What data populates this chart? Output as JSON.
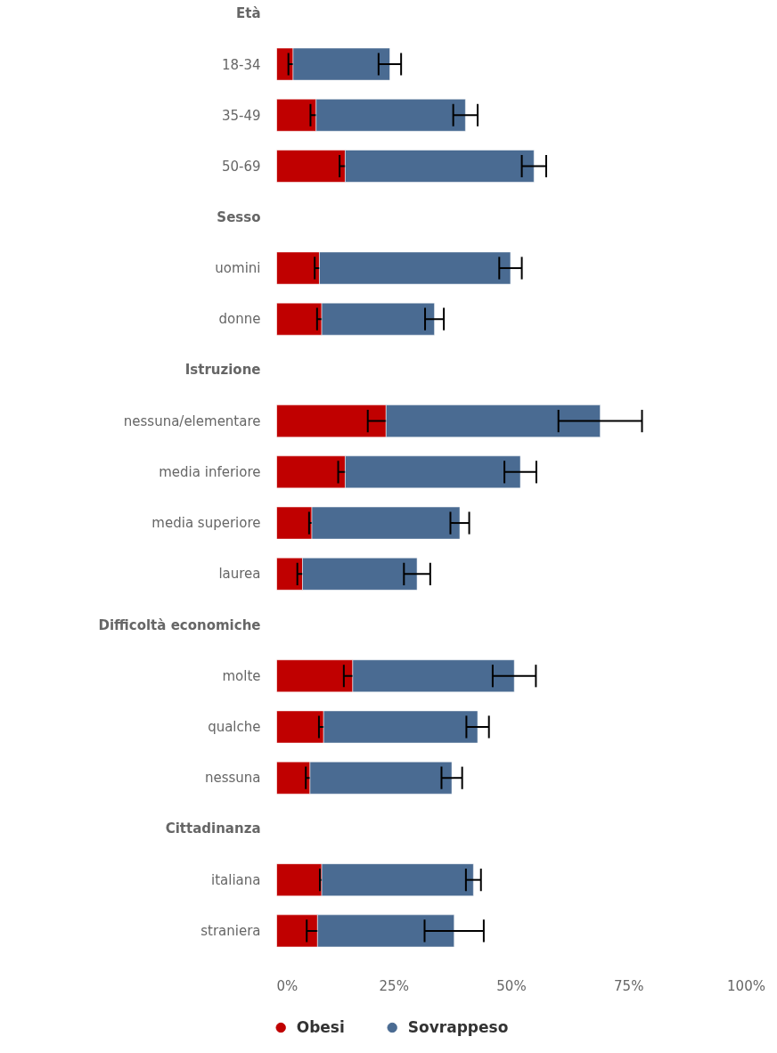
{
  "chart_data": {
    "type": "bar",
    "orientation": "horizontal",
    "stacked": true,
    "categories": [
      "Età",
      "18-34",
      "35-49",
      "50-69",
      "Sesso",
      "uomini",
      "donne",
      "Istruzione",
      "nessuna/elementare",
      "media inferiore",
      "media superiore",
      "laurea",
      "Difficoltà economiche",
      "molte",
      "qualche",
      "nessuna",
      "Cittadinanza",
      "italiana",
      "straniera"
    ],
    "series": [
      {
        "name": "Obesi",
        "color": "#c00000",
        "values": [
          null,
          3.5,
          8.4,
          14.6,
          null,
          9.1,
          9.6,
          null,
          23.3,
          14.6,
          7.5,
          5.5,
          null,
          16.2,
          10.0,
          7.1,
          null,
          9.6,
          8.7
        ],
        "errors": [
          null,
          1.0,
          1.2,
          1.2,
          null,
          1.0,
          1.0,
          null,
          3.9,
          1.5,
          0.6,
          1.1,
          null,
          1.9,
          1.0,
          0.9,
          null,
          0.4,
          2.3
        ]
      },
      {
        "name": "Sovrappeso",
        "color": "#4a6b92",
        "values": [
          null,
          20.6,
          31.8,
          40.2,
          null,
          40.7,
          24.0,
          null,
          45.6,
          37.3,
          31.5,
          24.4,
          null,
          34.4,
          32.8,
          30.2,
          null,
          32.3,
          29.1
        ],
        "errors": [
          null,
          2.4,
          2.6,
          2.6,
          null,
          2.4,
          2.0,
          null,
          8.9,
          3.4,
          2.0,
          2.8,
          null,
          4.6,
          2.4,
          2.2,
          null,
          1.6,
          6.3
        ]
      }
    ],
    "xlim": [
      0,
      100
    ],
    "xticks": [
      {
        "value": 0,
        "label": "0%"
      },
      {
        "value": 25,
        "label": "25%"
      },
      {
        "value": 50,
        "label": "50%"
      },
      {
        "value": 75,
        "label": "75%"
      },
      {
        "value": 100,
        "label": "100%"
      }
    ],
    "grid": false,
    "legend": "bottom",
    "marker": "circle"
  }
}
